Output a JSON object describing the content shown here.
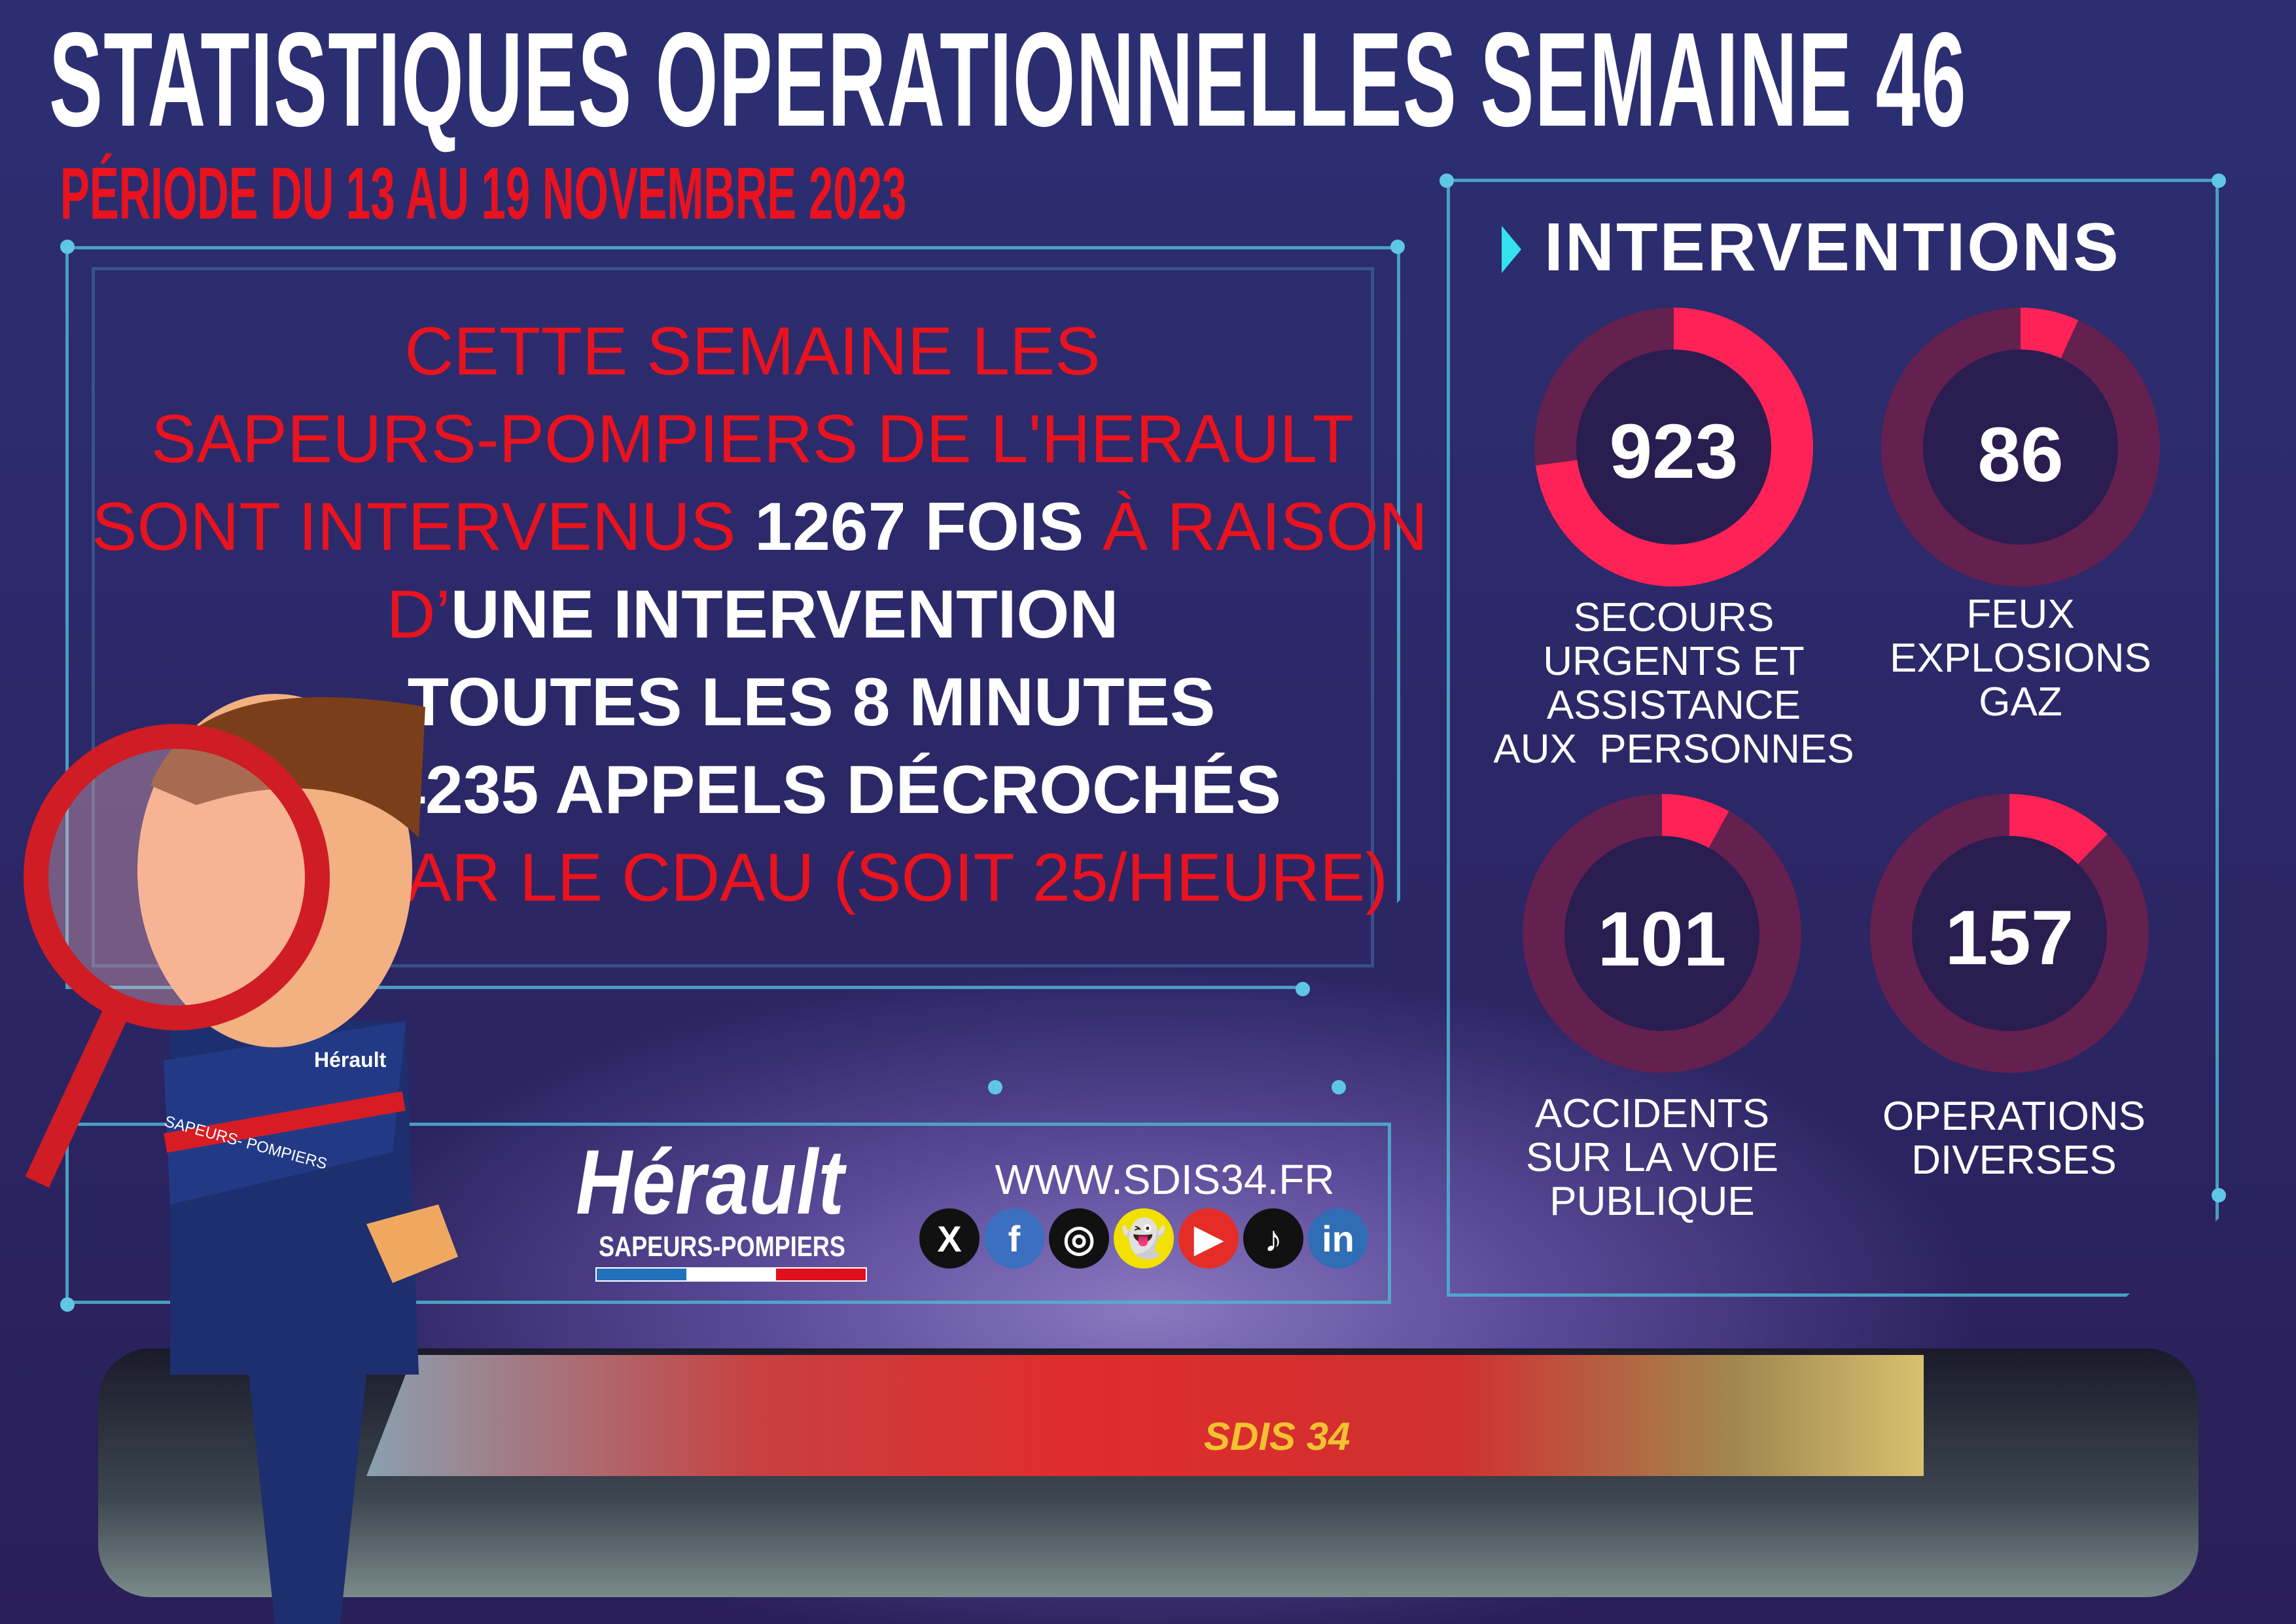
{
  "header": {
    "title": "STATISTIQUES OPERATIONNELLES SEMAINE 46",
    "period": "PÉRIODE DU 13 AU 19 NOVEMBRE 2023"
  },
  "summary": {
    "line1": "CETTE SEMAINE LES",
    "line2": "SAPEURS-POMPIERS DE L'HERAULT",
    "line3_pre": "SONT INTERVENUS ",
    "line3_bold": "1267 FOIS",
    " line3_post": "",
    "line3_post": " À RAISON",
    "line4_pre": "D’",
    "line4_bold": "UNE INTERVENTION",
    "line5_bold": "TOUTES LES 8 MINUTES",
    "line6_bold": "4235 APPELS DÉCROCHÉS",
    "line7": "PAR LE CDAU (SOIT 25/HEURE)"
  },
  "interventions": {
    "title": "INTERVENTIONS",
    "total": 1267,
    "accent": "#ff2257",
    "track": "#64204f",
    "items": [
      {
        "value": "923",
        "label": [
          "SECOURS",
          "URGENTS ET",
          "ASSISTANCE",
          "AUX  PERSONNES"
        ]
      },
      {
        "value": "86",
        "label": [
          "FEUX",
          "EXPLOSIONS",
          "GAZ"
        ]
      },
      {
        "value": "101",
        "label": [
          "ACCIDENTS",
          "SUR LA VOIE",
          "PUBLIQUE"
        ]
      },
      {
        "value": "157",
        "label": [
          "OPERATIONS",
          "DIVERSES"
        ]
      }
    ]
  },
  "footer": {
    "logo_word": "Hérault",
    "logo_sub": "SAPEURS-POMPIERS",
    "url": "WWW.SDIS34.FR",
    "social": [
      {
        "icon": "x-icon",
        "glyph": "X",
        "color": "#111111"
      },
      {
        "icon": "facebook-icon",
        "glyph": "f",
        "color": "#3b6fc0"
      },
      {
        "icon": "instagram-icon",
        "glyph": "◎",
        "color": "#111111"
      },
      {
        "icon": "snapchat-icon",
        "glyph": "👻",
        "color": "#f2e000"
      },
      {
        "icon": "youtube-icon",
        "glyph": "▶",
        "color": "#e52d27"
      },
      {
        "icon": "tiktok-icon",
        "glyph": "♪",
        "color": "#111111"
      },
      {
        "icon": "linkedin-icon",
        "glyph": "in",
        "color": "#2f6db5"
      }
    ]
  },
  "mascot": {
    "badge": "Hérault",
    "band": "SAPEURS- POMPIERS"
  },
  "photo": {
    "truck_text": "SDIS 34"
  }
}
